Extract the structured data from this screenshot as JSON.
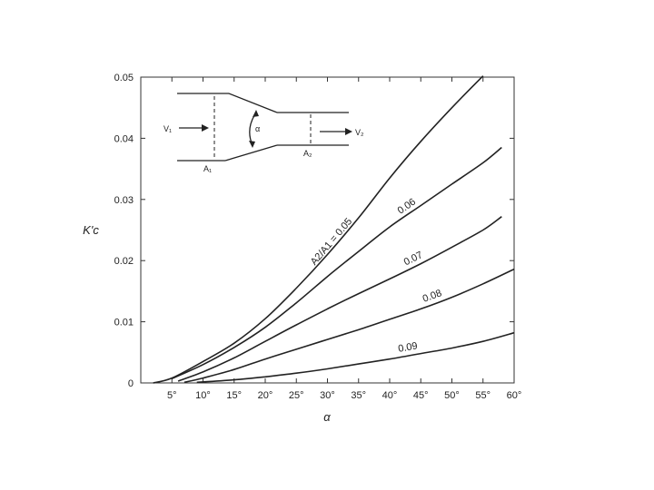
{
  "chart_data": {
    "type": "line",
    "title": "",
    "xlabel": "α",
    "ylabel": "K'c",
    "xlim": [
      0,
      60
    ],
    "ylim": [
      0,
      0.05
    ],
    "x_ticks": [
      5,
      10,
      15,
      20,
      25,
      30,
      35,
      40,
      45,
      50,
      55,
      60
    ],
    "x_tick_labels": [
      "5°",
      "10°",
      "15°",
      "20°",
      "25°",
      "30°",
      "35°",
      "40°",
      "45°",
      "50°",
      "55°",
      "60°"
    ],
    "y_ticks": [
      0,
      0.01,
      0.02,
      0.03,
      0.04,
      0.05
    ],
    "y_tick_labels": [
      "0",
      "0.01",
      "0.02",
      "0.03",
      "0.04",
      "0.05"
    ],
    "grid": false,
    "series": [
      {
        "name": "A2/A1 = 0.05",
        "x": [
          2,
          5,
          10,
          15,
          20,
          25,
          30,
          35,
          40,
          45,
          50,
          55
        ],
        "y": [
          0.0,
          0.0008,
          0.0035,
          0.0065,
          0.0105,
          0.0155,
          0.021,
          0.027,
          0.0335,
          0.0395,
          0.045,
          0.0502
        ]
      },
      {
        "name": "0.06",
        "x": [
          5,
          10,
          15,
          20,
          25,
          30,
          35,
          40,
          45,
          50,
          55,
          58
        ],
        "y": [
          0.0007,
          0.003,
          0.0058,
          0.0091,
          0.0131,
          0.0174,
          0.0215,
          0.0255,
          0.029,
          0.0325,
          0.036,
          0.0385
        ]
      },
      {
        "name": "0.07",
        "x": [
          6,
          10,
          15,
          20,
          25,
          30,
          35,
          40,
          45,
          50,
          55,
          58
        ],
        "y": [
          0.0003,
          0.0018,
          0.0041,
          0.0068,
          0.0095,
          0.0121,
          0.0146,
          0.017,
          0.0195,
          0.0222,
          0.025,
          0.0272
        ]
      },
      {
        "name": "0.08",
        "x": [
          7,
          10,
          15,
          20,
          25,
          30,
          35,
          40,
          45,
          50,
          55,
          60
        ],
        "y": [
          0.0001,
          0.0008,
          0.0022,
          0.0039,
          0.0055,
          0.0071,
          0.0087,
          0.0104,
          0.0121,
          0.014,
          0.0162,
          0.0186
        ]
      },
      {
        "name": "0.09",
        "x": [
          9,
          15,
          20,
          25,
          30,
          35,
          40,
          45,
          50,
          55,
          60
        ],
        "y": [
          0.0001,
          0.0005,
          0.001,
          0.0016,
          0.0023,
          0.0031,
          0.0039,
          0.0048,
          0.0057,
          0.0068,
          0.0082
        ]
      }
    ],
    "inset": {
      "labels": {
        "v1": "V₁",
        "v2": "V₂",
        "a1": "A₁",
        "a2": "A₂",
        "alpha": "α"
      }
    }
  }
}
